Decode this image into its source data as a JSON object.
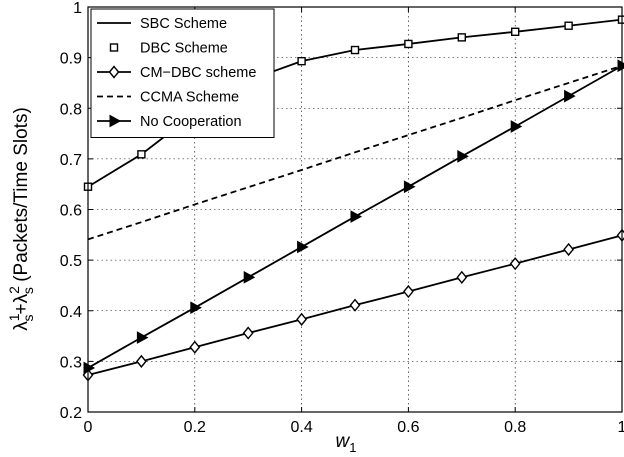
{
  "chart_data": {
    "type": "line",
    "xlabel": "w",
    "xlabel_sub": "1",
    "ylabel_main": "λ",
    "ylabel_s": "s",
    "ylabel_sup1": "1",
    "ylabel_plus": "+λ",
    "ylabel_sup2": "2",
    "ylabel_rest": " (Packets/Time Slots)",
    "xlim": [
      0,
      1
    ],
    "ylim": [
      0.2,
      1
    ],
    "xticks": [
      "0",
      "0.2",
      "0.4",
      "0.6",
      "0.8",
      "1"
    ],
    "yticks": [
      "0.2",
      "0.3",
      "0.4",
      "0.5",
      "0.6",
      "0.7",
      "0.8",
      "0.9",
      "1"
    ],
    "grid": true,
    "legend_position": "top-left",
    "x": [
      0,
      0.1,
      0.2,
      0.3,
      0.4,
      0.5,
      0.6,
      0.7,
      0.8,
      0.9,
      1.0
    ],
    "series": [
      {
        "name": "SBC Scheme",
        "style": "solid",
        "marker": "none",
        "values": [
          0.645,
          0.709,
          0.79,
          0.855,
          0.893,
          0.915,
          0.927,
          0.94,
          0.951,
          0.963,
          0.975
        ]
      },
      {
        "name": "DBC Scheme",
        "style": "none",
        "marker": "square",
        "values": [
          0.645,
          0.709,
          0.79,
          0.855,
          0.893,
          0.915,
          0.927,
          0.94,
          0.951,
          0.963,
          0.975
        ]
      },
      {
        "name": "CM−DBC scheme",
        "style": "solid",
        "marker": "diamond",
        "values": [
          0.273,
          0.3,
          0.328,
          0.356,
          0.383,
          0.411,
          0.438,
          0.466,
          0.493,
          0.521,
          0.549
        ]
      },
      {
        "name": "CCMA Scheme",
        "style": "dashed",
        "marker": "none",
        "values": [
          0.541,
          0.575,
          0.61,
          0.644,
          0.678,
          0.713,
          0.747,
          0.781,
          0.816,
          0.85,
          0.884
        ]
      },
      {
        "name": "No Cooperation",
        "style": "solid",
        "marker": "triangle-right",
        "values": [
          0.287,
          0.347,
          0.406,
          0.466,
          0.526,
          0.586,
          0.645,
          0.705,
          0.764,
          0.824,
          0.884
        ]
      }
    ]
  }
}
